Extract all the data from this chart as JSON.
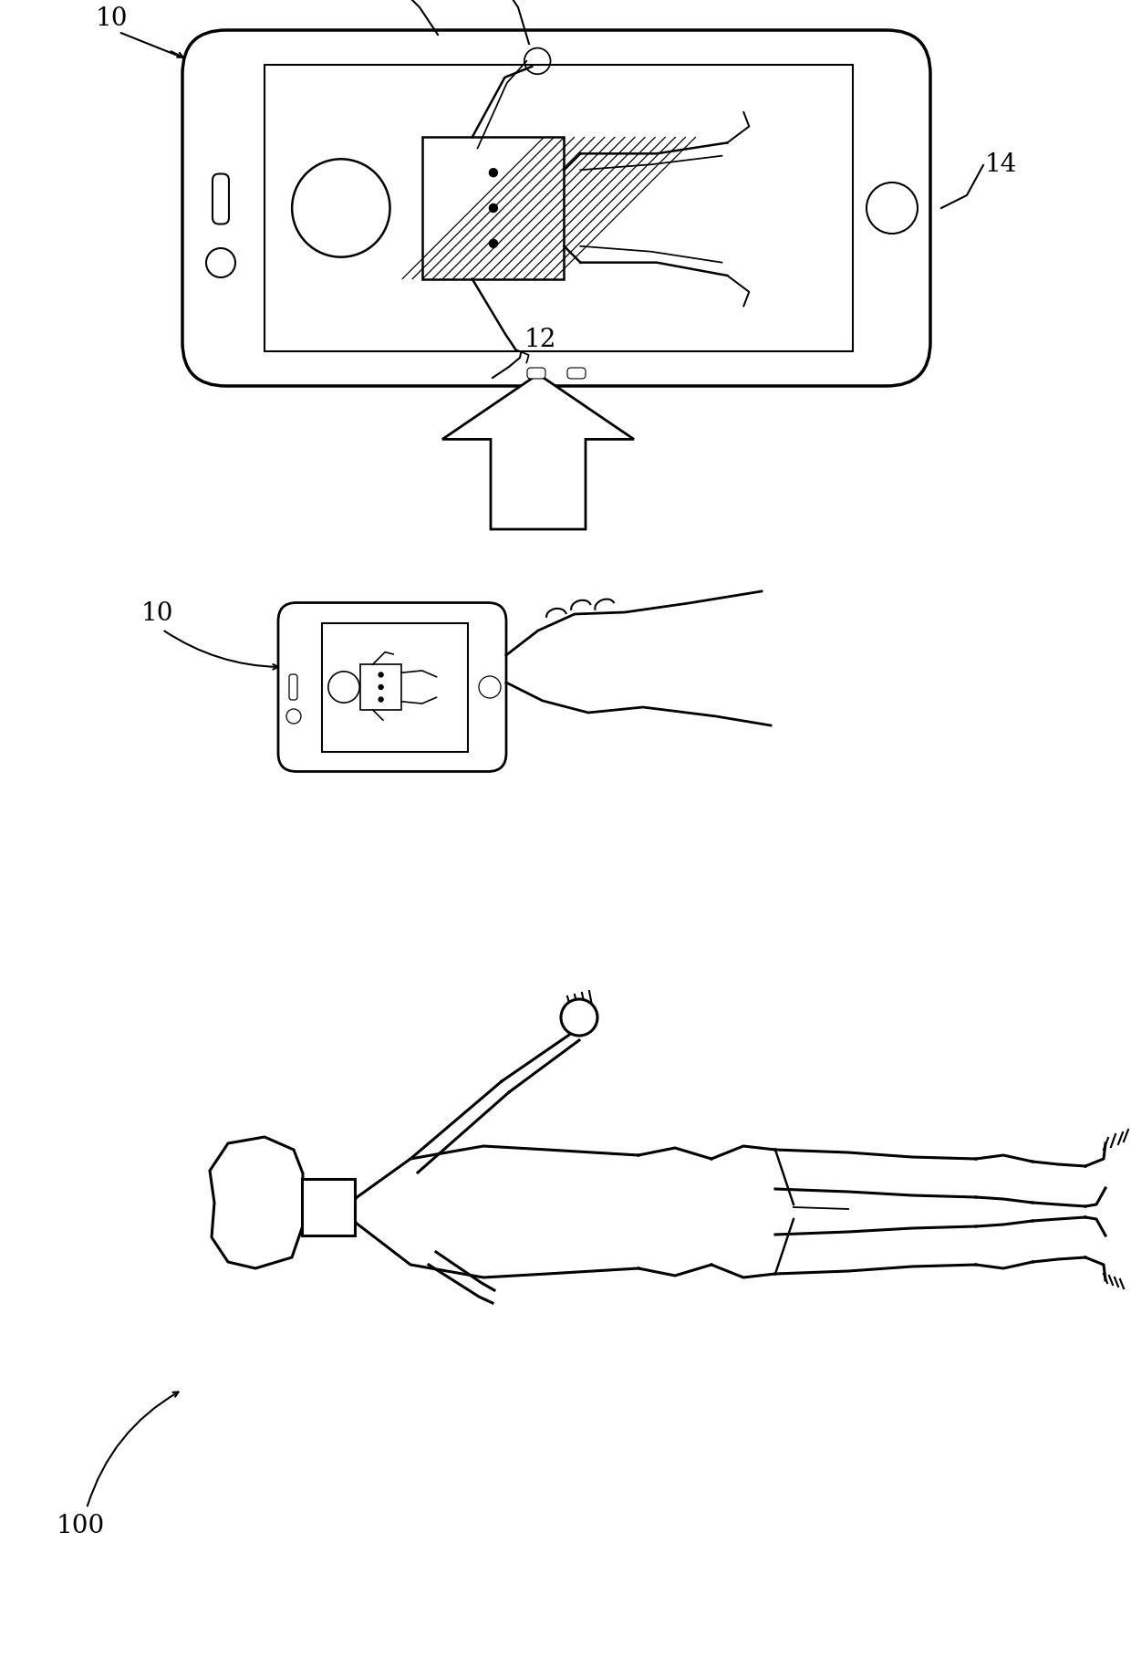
{
  "bg_color": "#ffffff",
  "line_color": "#000000",
  "lw_main": 2.5,
  "lw_med": 2.0,
  "lw_thin": 1.5,
  "label_fontsize": 20,
  "fig_width": 12.4,
  "fig_height": 18.28,
  "dpi": 100
}
